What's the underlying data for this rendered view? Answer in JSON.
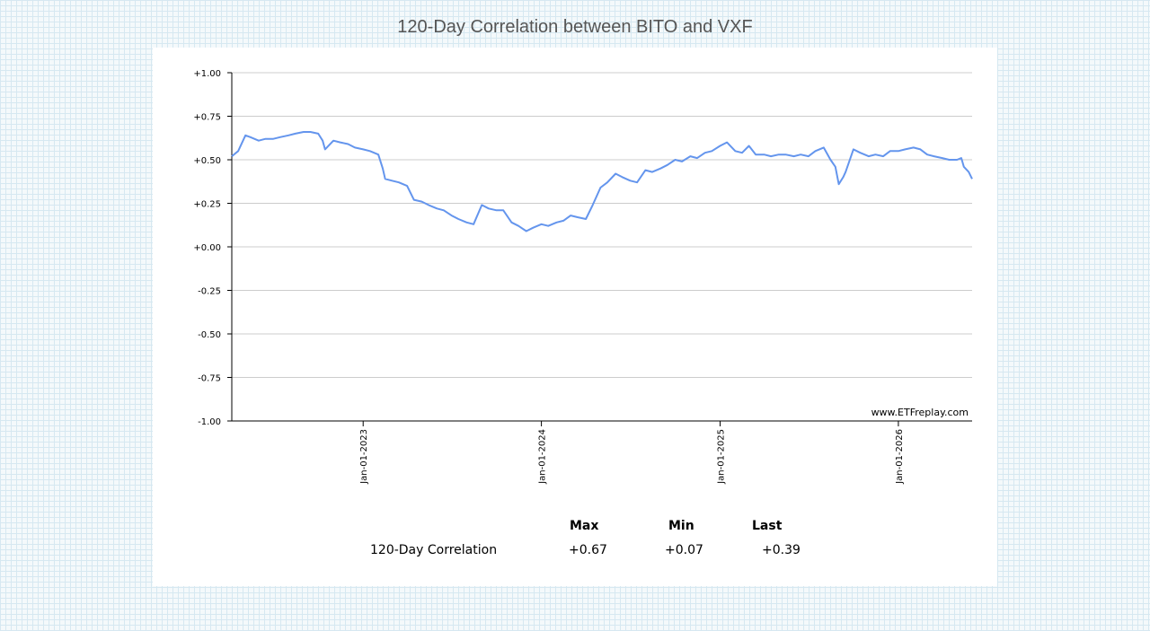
{
  "title": "120-Day Correlation between BITO and VXF",
  "watermark": "www.ETFreplay.com",
  "colors": {
    "line": "#6495ed",
    "grid": "#cccccc",
    "axis": "#000000"
  },
  "chart_data": {
    "type": "line",
    "title": "120-Day Correlation between BITO and VXF",
    "xlabel": "",
    "ylabel": "",
    "ylim": [
      -1.0,
      1.0
    ],
    "y_ticks": [
      "+1.00",
      "+0.75",
      "+0.50",
      "+0.25",
      "+0.00",
      "-0.25",
      "-0.50",
      "-0.75",
      "-1.00"
    ],
    "x_ticks": [
      "Jan-01-2023",
      "Jan-01-2024",
      "Jan-01-2025",
      "Jan-01-2026"
    ],
    "grid": true,
    "xlim": [
      "2022-04-07",
      "2026-06-01"
    ],
    "series": [
      {
        "x": [
          "2022-04-07",
          "2022-04-20",
          "2022-05-05",
          "2022-05-15",
          "2022-06-01",
          "2022-06-15",
          "2022-07-01",
          "2022-07-15",
          "2022-08-01",
          "2022-08-15",
          "2022-09-01",
          "2022-09-15",
          "2022-10-01",
          "2022-10-10",
          "2022-10-15",
          "2022-11-01",
          "2022-11-15",
          "2022-12-01",
          "2022-12-15",
          "2023-01-01",
          "2023-01-15",
          "2023-02-01",
          "2023-02-10",
          "2023-02-15",
          "2023-03-01",
          "2023-03-15",
          "2023-04-01",
          "2023-04-15",
          "2023-05-01",
          "2023-05-15",
          "2023-06-01",
          "2023-06-15",
          "2023-07-01",
          "2023-07-15",
          "2023-08-01",
          "2023-08-15",
          "2023-09-01",
          "2023-09-15",
          "2023-10-01",
          "2023-10-15",
          "2023-11-01",
          "2023-11-15",
          "2023-12-01",
          "2023-12-15",
          "2024-01-01",
          "2024-01-15",
          "2024-02-01",
          "2024-02-15",
          "2024-03-01",
          "2024-03-15",
          "2024-04-01",
          "2024-04-15",
          "2024-05-01",
          "2024-05-15",
          "2024-06-01",
          "2024-06-15",
          "2024-07-01",
          "2024-07-15",
          "2024-08-01",
          "2024-08-15",
          "2024-09-01",
          "2024-09-15",
          "2024-10-01",
          "2024-10-15",
          "2024-11-01",
          "2024-11-15",
          "2024-12-01",
          "2024-12-15",
          "2025-01-01",
          "2025-01-15",
          "2025-02-01",
          "2025-02-15",
          "2025-03-01",
          "2025-03-15",
          "2025-04-01",
          "2025-04-15",
          "2025-05-01",
          "2025-05-15",
          "2025-06-01",
          "2025-06-15",
          "2025-07-01",
          "2025-07-15",
          "2025-08-01",
          "2025-08-15",
          "2025-08-25",
          "2025-09-01",
          "2025-09-10",
          "2025-09-15",
          "2025-10-01",
          "2025-10-15",
          "2025-11-01",
          "2025-11-15",
          "2025-12-01",
          "2025-12-15",
          "2026-01-01",
          "2026-01-15",
          "2026-02-01",
          "2026-02-15",
          "2026-03-01",
          "2026-03-15",
          "2026-04-01",
          "2026-04-15",
          "2026-05-01",
          "2026-05-10",
          "2026-05-15",
          "2026-05-25",
          "2026-06-01"
        ],
        "y": [
          0.52,
          0.55,
          0.64,
          0.63,
          0.61,
          0.62,
          0.62,
          0.63,
          0.64,
          0.65,
          0.66,
          0.66,
          0.65,
          0.61,
          0.56,
          0.61,
          0.6,
          0.59,
          0.57,
          0.56,
          0.55,
          0.53,
          0.45,
          0.39,
          0.38,
          0.37,
          0.35,
          0.27,
          0.26,
          0.24,
          0.22,
          0.21,
          0.18,
          0.16,
          0.14,
          0.13,
          0.24,
          0.22,
          0.21,
          0.21,
          0.14,
          0.12,
          0.09,
          0.11,
          0.13,
          0.12,
          0.14,
          0.15,
          0.18,
          0.17,
          0.16,
          0.24,
          0.34,
          0.37,
          0.42,
          0.4,
          0.38,
          0.37,
          0.44,
          0.43,
          0.45,
          0.47,
          0.5,
          0.49,
          0.52,
          0.51,
          0.54,
          0.55,
          0.58,
          0.6,
          0.55,
          0.54,
          0.58,
          0.53,
          0.53,
          0.52,
          0.53,
          0.53,
          0.52,
          0.53,
          0.52,
          0.55,
          0.57,
          0.5,
          0.46,
          0.36,
          0.4,
          0.43,
          0.56,
          0.54,
          0.52,
          0.53,
          0.52,
          0.55,
          0.55,
          0.56,
          0.57,
          0.56,
          0.53,
          0.52,
          0.51,
          0.5,
          0.5,
          0.51,
          0.46,
          0.43,
          0.39
        ]
      }
    ]
  },
  "stats": {
    "headers": [
      "Max",
      "Min",
      "Last"
    ],
    "rows": [
      {
        "label": "120-Day Correlation",
        "max": "+0.67",
        "min": "+0.07",
        "last": "+0.39"
      }
    ]
  }
}
